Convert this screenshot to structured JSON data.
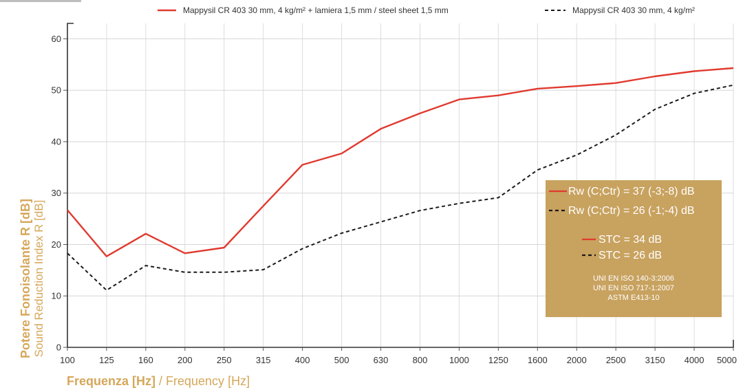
{
  "chart_data": {
    "type": "line",
    "categories": [
      "100",
      "125",
      "160",
      "200",
      "250",
      "315",
      "400",
      "500",
      "630",
      "800",
      "1000",
      "1250",
      "1600",
      "2000",
      "2500",
      "3150",
      "4000",
      "5000"
    ],
    "series": [
      {
        "name": "Mappysil CR 403 30 mm, 4 kg/m² + lamiera 1,5 mm / steel sheet 1,5 mm",
        "style": "solid",
        "color": "#e03a2f",
        "values": [
          26.7,
          17.7,
          22.1,
          18.3,
          19.4,
          27.5,
          35.5,
          37.7,
          42.5,
          45.5,
          48.2,
          49.0,
          50.3,
          50.8,
          51.4,
          52.7,
          53.7,
          54.3
        ]
      },
      {
        "name": "Mappysil CR 403 30 mm, 4 kg/m²",
        "style": "dashed",
        "color": "#1a1a1a",
        "values": [
          18.3,
          11.1,
          15.9,
          14.6,
          14.6,
          15.1,
          19.2,
          22.2,
          24.4,
          26.6,
          28.0,
          29.1,
          34.5,
          37.4,
          41.3,
          46.3,
          49.4,
          51.0
        ]
      }
    ],
    "ylim": [
      0,
      63
    ],
    "yticks": [
      0,
      10,
      20,
      30,
      40,
      50,
      60
    ],
    "grid": true,
    "legend_position": "top",
    "xlabel": {
      "bold": "Frequenza [Hz]",
      "light": " / Frequency [Hz]"
    },
    "ylabel": {
      "bold": "Potere Fonoisolante R [dB]",
      "light": "Sound Reduction Index R [dB]"
    },
    "xtick_labels": [
      "100",
      "125",
      "160",
      "200",
      "250",
      "315",
      "400",
      "500",
      "630",
      "800",
      "1000",
      "1250",
      "1600",
      "2000",
      "2500",
      "3150",
      "4000",
      "5000"
    ],
    "annotation_box": {
      "background": "#c8a25f",
      "rows": [
        {
          "style": "solid",
          "color": "#e03a2f",
          "text": "Rw (C;Ctr) = 37 (-3;-8) dB"
        },
        {
          "style": "dashed",
          "color": "#1a1a1a",
          "text": "Rw (C;Ctr) = 26 (-1;-4) dB"
        },
        {
          "style": "solid",
          "color": "#e03a2f",
          "text": "STC = 34 dB"
        },
        {
          "style": "dashed",
          "color": "#1a1a1a",
          "text": "STC = 26 dB"
        }
      ],
      "standards": [
        "UNI EN ISO 140-3:2006",
        "UNI EN ISO 717-1:2007",
        "ASTM E413-10"
      ]
    }
  }
}
